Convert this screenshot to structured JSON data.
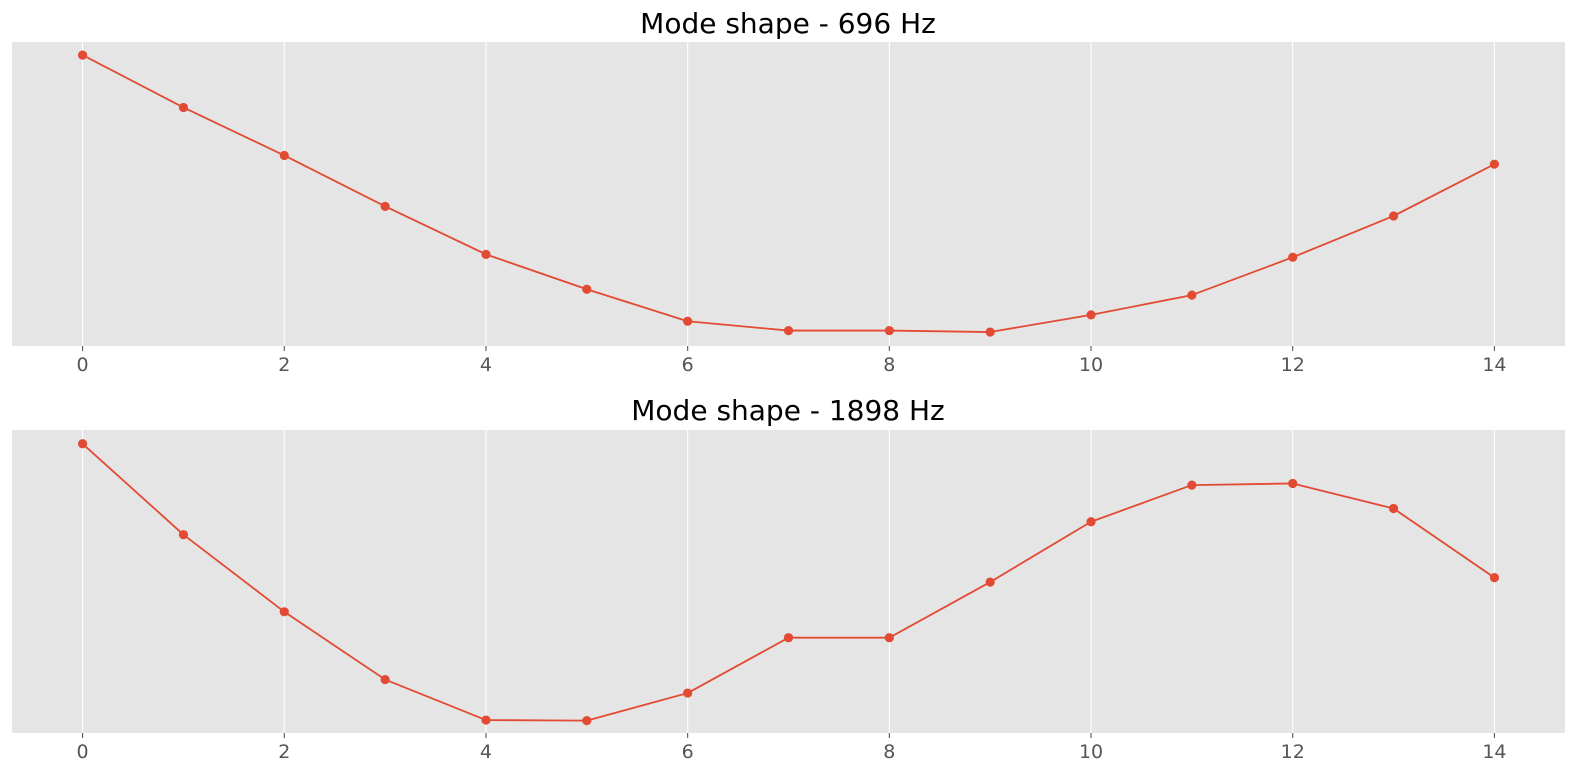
{
  "colors": {
    "series": "#e24a33",
    "plot_background": "#e5e5e5",
    "grid": "#ffffff",
    "tick_text": "#555555",
    "title_text": "#000000"
  },
  "chart_data": [
    {
      "type": "line",
      "title": "Mode shape - 696 Hz",
      "xlabel": "",
      "ylabel": "",
      "marker": "circle",
      "grid": "vertical lines only",
      "y_ticks_visible": false,
      "x": [
        0,
        1,
        2,
        3,
        4,
        5,
        6,
        7,
        8,
        9,
        10,
        11,
        12,
        13,
        14
      ],
      "series": [
        {
          "values": [
            1.0,
            0.82,
            0.655,
            0.48,
            0.315,
            0.195,
            0.085,
            0.053,
            0.053,
            0.048,
            0.107,
            0.175,
            0.305,
            0.447,
            0.625
          ]
        }
      ],
      "xlim": [
        -0.7,
        14.7
      ],
      "ylim": [
        0.0,
        1.045
      ],
      "xticks": [
        0,
        2,
        4,
        6,
        8,
        10,
        12,
        14
      ],
      "xtick_labels": [
        "0",
        "2",
        "4",
        "6",
        "8",
        "10",
        "12",
        "14"
      ]
    },
    {
      "type": "line",
      "title": "Mode shape - 1898 Hz",
      "xlabel": "",
      "ylabel": "",
      "marker": "circle",
      "grid": "vertical lines only",
      "y_ticks_visible": false,
      "x": [
        0,
        1,
        2,
        3,
        4,
        5,
        6,
        7,
        8,
        9,
        10,
        11,
        12,
        13,
        14
      ],
      "series": [
        {
          "values": [
            1.0,
            0.67,
            0.39,
            0.144,
            -0.003,
            -0.005,
            0.095,
            0.296,
            0.296,
            0.498,
            0.717,
            0.85,
            0.856,
            0.765,
            0.514
          ]
        }
      ],
      "xlim": [
        -0.7,
        14.7
      ],
      "ylim": [
        -0.05,
        1.05
      ],
      "xticks": [
        0,
        2,
        4,
        6,
        8,
        10,
        12,
        14
      ],
      "xtick_labels": [
        "0",
        "2",
        "4",
        "6",
        "8",
        "10",
        "12",
        "14"
      ]
    }
  ]
}
